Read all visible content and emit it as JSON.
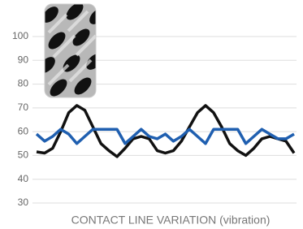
{
  "chart_data": {
    "type": "line",
    "x_label": "CONTACT LINE VARIATION (vibration)",
    "categories": [
      null,
      null,
      null,
      null,
      null,
      null,
      null,
      null,
      null,
      null,
      null,
      null,
      null,
      null,
      null,
      null,
      null,
      null,
      null,
      null,
      null,
      null,
      null,
      null,
      null,
      null,
      null,
      null,
      null,
      null,
      null,
      null,
      null
    ],
    "series": [
      {
        "color": "#111111",
        "values": [
          51.5,
          51,
          53,
          60,
          68,
          71,
          69,
          62,
          55,
          52,
          49.5,
          53,
          57,
          58,
          57,
          52,
          51,
          52,
          56,
          62,
          68,
          71,
          68,
          62,
          55,
          52,
          50,
          53,
          57,
          58,
          57,
          56,
          51
        ]
      },
      {
        "color": "#1f5fb0",
        "values": [
          59,
          56,
          58,
          61,
          59,
          55,
          58,
          61,
          61,
          61,
          61,
          55,
          58,
          61,
          58,
          57,
          59,
          56,
          58,
          61,
          58,
          55,
          61,
          61,
          61,
          61,
          55,
          58,
          61,
          59,
          57,
          57,
          59
        ]
      }
    ],
    "ylim": [
      30,
      100
    ],
    "yticks": [
      30,
      40,
      50,
      60,
      70,
      80,
      90,
      100
    ],
    "grid": true
  }
}
